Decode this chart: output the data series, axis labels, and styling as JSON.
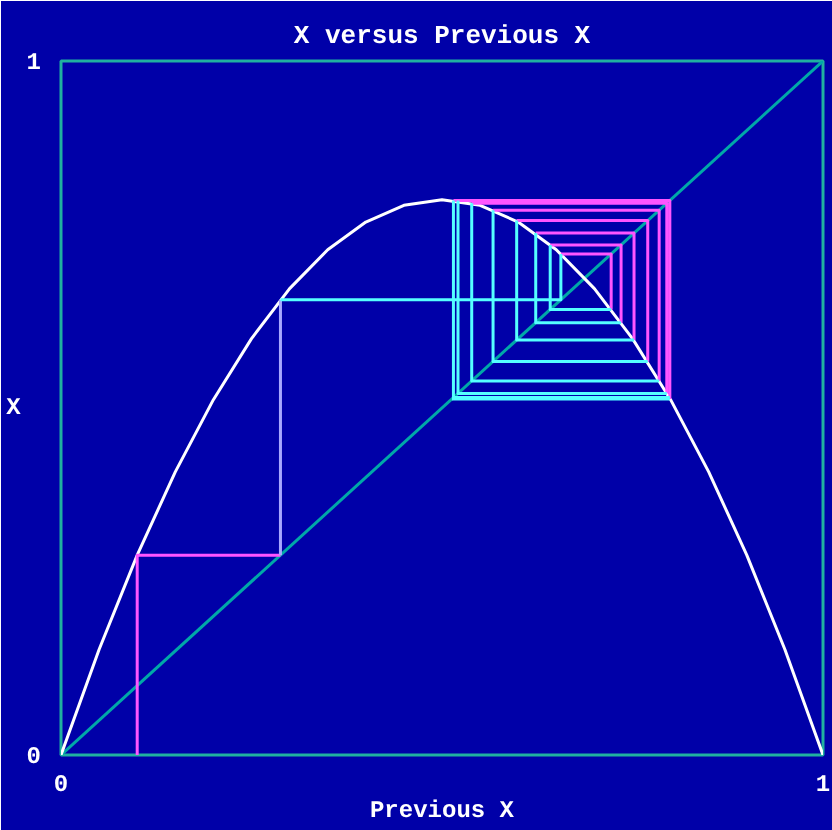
{
  "chart_data": {
    "type": "line",
    "title": "X versus Previous X",
    "xlabel": "Previous X",
    "ylabel": "X",
    "xlim": [
      0,
      1
    ],
    "ylim": [
      0,
      1
    ],
    "xticks": [
      0,
      1
    ],
    "yticks": [
      0,
      1
    ],
    "marker": "none",
    "line_style": "solid",
    "series": [
      {
        "color": "#00a8a8",
        "x": [
          0,
          1
        ],
        "values": [
          0,
          1
        ]
      },
      {
        "color": "#ffffff",
        "x": [
          0,
          0.05,
          0.1,
          0.15,
          0.2,
          0.25,
          0.3,
          0.35,
          0.4,
          0.45,
          0.5,
          0.55,
          0.6,
          0.65,
          0.7,
          0.75,
          0.8,
          0.85,
          0.9,
          0.95,
          1
        ],
        "values": [
          0,
          0.152,
          0.288,
          0.408,
          0.512,
          0.6,
          0.672,
          0.728,
          0.768,
          0.792,
          0.8,
          0.792,
          0.768,
          0.728,
          0.672,
          0.6,
          0.512,
          0.408,
          0.288,
          0.152,
          0
        ]
      },
      {
        "color": "#ff55ff",
        "x": [
          0.1,
          0.1,
          0.288,
          null,
          0.656,
          0.722,
          0.722,
          null,
          0.642,
          0.735,
          0.735,
          null,
          0.623,
          0.752,
          0.752,
          null,
          0.598,
          0.77,
          0.77,
          null,
          0.567,
          0.785,
          0.785,
          null,
          0.539,
          0.795,
          0.795,
          null,
          0.521,
          0.799,
          0.799,
          null,
          0.515,
          0.799,
          0.799
        ],
        "values": [
          0,
          0.288,
          0.288,
          null,
          0.722,
          0.722,
          0.642,
          null,
          0.735,
          0.735,
          0.623,
          null,
          0.752,
          0.752,
          0.598,
          null,
          0.77,
          0.77,
          0.567,
          null,
          0.785,
          0.785,
          0.539,
          null,
          0.795,
          0.795,
          0.521,
          null,
          0.799,
          0.799,
          0.515,
          null,
          0.799,
          0.799,
          0.513
        ]
      },
      {
        "color": "#a8a8ff",
        "x": [
          0.288,
          0.288
        ],
        "values": [
          0.288,
          0.656
        ]
      },
      {
        "color": "#55ffff",
        "x": [
          0.288,
          0.656,
          0.656,
          null,
          0.722,
          0.642,
          0.642,
          null,
          0.735,
          0.623,
          0.623,
          null,
          0.752,
          0.598,
          0.598,
          null,
          0.77,
          0.567,
          0.567,
          null,
          0.785,
          0.539,
          0.539,
          null,
          0.795,
          0.521,
          0.521,
          null,
          0.799,
          0.515,
          0.515,
          null,
          0.799,
          0.513,
          0.513
        ],
        "values": [
          0.656,
          0.656,
          0.722,
          null,
          0.642,
          0.642,
          0.735,
          null,
          0.623,
          0.623,
          0.752,
          null,
          0.598,
          0.598,
          0.77,
          null,
          0.567,
          0.567,
          0.785,
          null,
          0.539,
          0.539,
          0.795,
          null,
          0.521,
          0.521,
          0.799,
          null,
          0.515,
          0.515,
          0.799,
          null,
          0.513,
          0.513,
          0.513
        ]
      }
    ]
  }
}
